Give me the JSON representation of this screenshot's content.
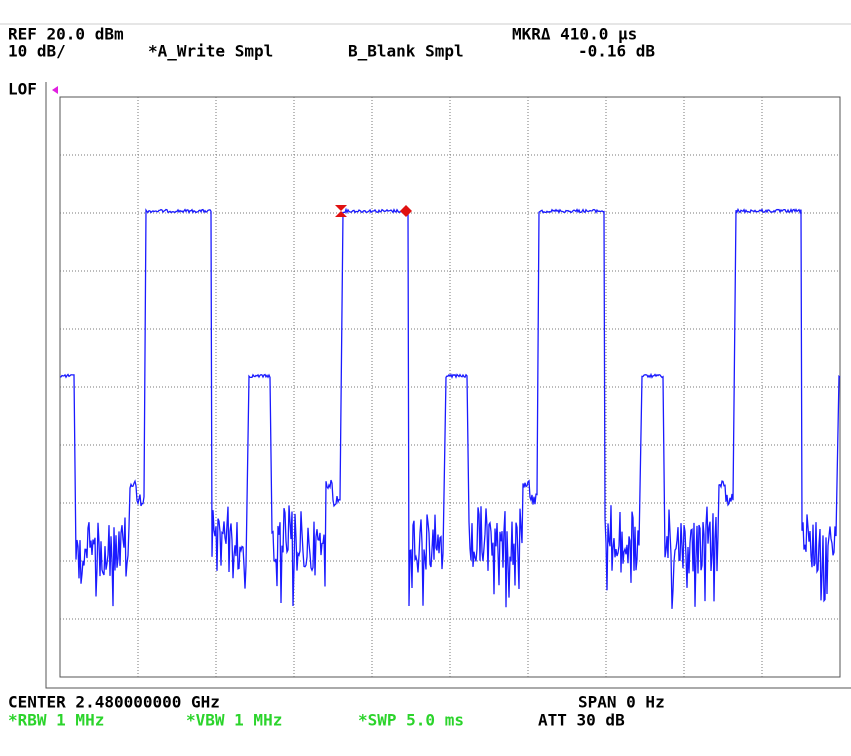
{
  "header": {
    "ref_level": "REF 20.0 dBm",
    "marker_delta": "MKRΔ 410.0 µs",
    "scale": "10 dB/",
    "trace_a": "*A_Write Smpl",
    "trace_b": "B_Blank Smpl",
    "marker_level": "-0.16 dB"
  },
  "status": "LOF",
  "footer": {
    "center": "CENTER 2.480000000 GHz",
    "span": "SPAN 0 Hz",
    "rbw": "*RBW 1 MHz",
    "vbw": "*VBW 1 MHz",
    "sweep": "*SWP 5.0 ms",
    "attenuation": "ATT 30 dB"
  }
}
